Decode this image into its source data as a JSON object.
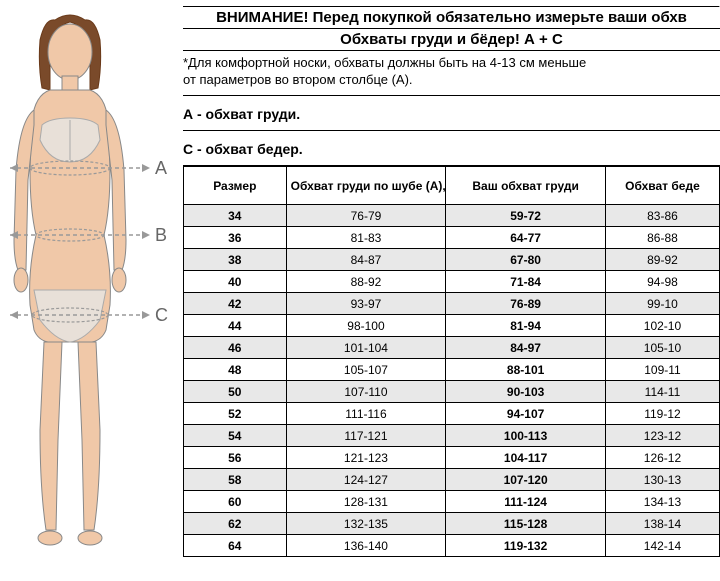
{
  "headings": {
    "line1": "ВНИМАНИЕ! Перед покупкой обязательно измерьте ваши обхв",
    "line2": "Обхваты груди и бёдер! А + С"
  },
  "notes": {
    "line1": "*Для комфортной носки, обхваты должны быть на 4-13 см меньше",
    "line2": "от параметров во втором столбце (А)."
  },
  "sections": {
    "a": "А - обхват груди.",
    "c": "С - обхват бедер."
  },
  "measure_letters": {
    "a": "A",
    "b": "B",
    "c": "C"
  },
  "table": {
    "columns": [
      "Размер",
      "Обхват груди по шубе (А), см",
      "Ваш обхват груди",
      "Обхват беде"
    ],
    "rows": [
      [
        "34",
        "76-79",
        "59-72",
        "83-86"
      ],
      [
        "36",
        "81-83",
        "64-77",
        "86-88"
      ],
      [
        "38",
        "84-87",
        "67-80",
        "89-92"
      ],
      [
        "40",
        "88-92",
        "71-84",
        "94-98"
      ],
      [
        "42",
        "93-97",
        "76-89",
        "99-10"
      ],
      [
        "44",
        "98-100",
        "81-94",
        "102-10"
      ],
      [
        "46",
        "101-104",
        "84-97",
        "105-10"
      ],
      [
        "48",
        "105-107",
        "88-101",
        "109-11"
      ],
      [
        "50",
        "107-110",
        "90-103",
        "114-11"
      ],
      [
        "52",
        "111-116",
        "94-107",
        "119-12"
      ],
      [
        "54",
        "117-121",
        "100-113",
        "123-12"
      ],
      [
        "56",
        "121-123",
        "104-117",
        "126-12"
      ],
      [
        "58",
        "124-127",
        "107-120",
        "130-13"
      ],
      [
        "60",
        "128-131",
        "111-124",
        "134-13"
      ],
      [
        "62",
        "132-135",
        "115-128",
        "138-14"
      ],
      [
        "64",
        "136-140",
        "119-132",
        "142-14"
      ]
    ]
  },
  "figure_colors": {
    "skin": "#f0c8a8",
    "hair": "#7a4a2a",
    "garment": "#e8e0d8",
    "outline": "#888888",
    "measure_line": "#999999"
  }
}
